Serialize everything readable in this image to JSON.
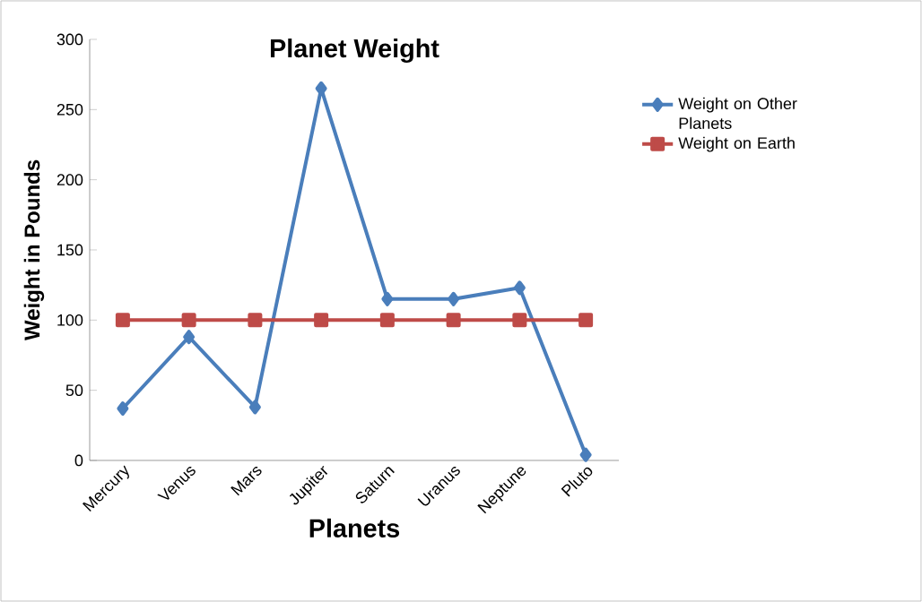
{
  "chart_data": {
    "type": "line",
    "title": "Planet Weight",
    "xlabel": "Planets",
    "ylabel": "Weight in Pounds",
    "categories": [
      "Mercury",
      "Venus",
      "Mars",
      "Jupiter",
      "Saturn",
      "Uranus",
      "Neptune",
      "Pluto"
    ],
    "series": [
      {
        "name": "Weight on Other Planets",
        "color": "#4a7ebb",
        "marker": "diamond",
        "values": [
          37,
          88,
          38,
          265,
          115,
          115,
          123,
          4
        ]
      },
      {
        "name": "Weight on Earth",
        "color": "#be4b48",
        "marker": "square",
        "values": [
          100,
          100,
          100,
          100,
          100,
          100,
          100,
          100
        ]
      }
    ],
    "ylim": [
      0,
      300
    ],
    "yticks": [
      0,
      50,
      100,
      150,
      200,
      250,
      300
    ],
    "legend": "right",
    "grid": false
  }
}
